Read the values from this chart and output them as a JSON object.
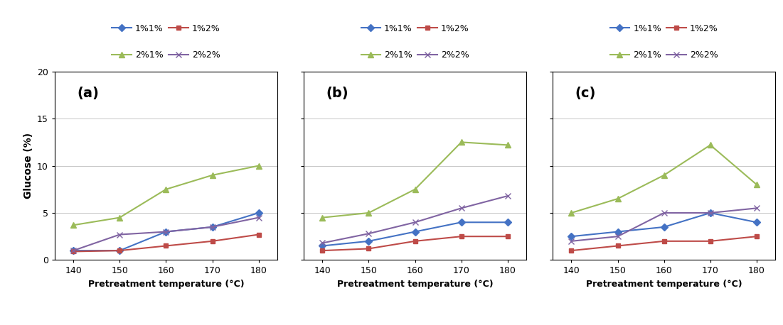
{
  "x": [
    140,
    150,
    160,
    170,
    180
  ],
  "panels": [
    {
      "label": "(a)",
      "series": {
        "1%1%": [
          1.0,
          1.0,
          3.0,
          3.5,
          5.0
        ],
        "1%2%": [
          0.9,
          1.0,
          1.5,
          2.0,
          2.7
        ],
        "2%1%": [
          3.7,
          4.5,
          7.5,
          9.0,
          10.0
        ],
        "2%2%": [
          1.0,
          2.7,
          3.0,
          3.5,
          4.5
        ]
      }
    },
    {
      "label": "(b)",
      "series": {
        "1%1%": [
          1.5,
          2.0,
          3.0,
          4.0,
          4.0
        ],
        "1%2%": [
          1.0,
          1.2,
          2.0,
          2.5,
          2.5
        ],
        "2%1%": [
          4.5,
          5.0,
          7.5,
          12.5,
          12.2
        ],
        "2%2%": [
          1.8,
          2.8,
          4.0,
          5.5,
          6.8
        ]
      }
    },
    {
      "label": "(c)",
      "series": {
        "1%1%": [
          2.5,
          3.0,
          3.5,
          5.0,
          4.0
        ],
        "1%2%": [
          1.0,
          1.5,
          2.0,
          2.0,
          2.5
        ],
        "2%1%": [
          5.0,
          6.5,
          9.0,
          12.2,
          8.0
        ],
        "2%2%": [
          2.0,
          2.5,
          5.0,
          5.0,
          5.5
        ]
      }
    }
  ],
  "series_order": [
    "1%1%",
    "1%2%",
    "2%1%",
    "2%2%"
  ],
  "series_styles": {
    "1%1%": {
      "color": "#4472C4",
      "marker": "D",
      "markersize": 5
    },
    "1%2%": {
      "color": "#BE4B48",
      "marker": "s",
      "markersize": 5
    },
    "2%1%": {
      "color": "#9BBB59",
      "marker": "^",
      "markersize": 6
    },
    "2%2%": {
      "color": "#8064A2",
      "marker": "x",
      "markersize": 6
    }
  },
  "ylabel": "Glucose (%)",
  "xlabel": "Pretreatment temperature (°C)",
  "ylim": [
    0,
    20
  ],
  "yticks": [
    0,
    5,
    10,
    15,
    20
  ],
  "xticks": [
    140,
    150,
    160,
    170,
    180
  ],
  "background_color": "#ffffff",
  "plot_bg": "#f2f2f2",
  "legend_row1": [
    "1%1%",
    "1%2%"
  ],
  "legend_row2": [
    "2%1%",
    "2%2%"
  ]
}
